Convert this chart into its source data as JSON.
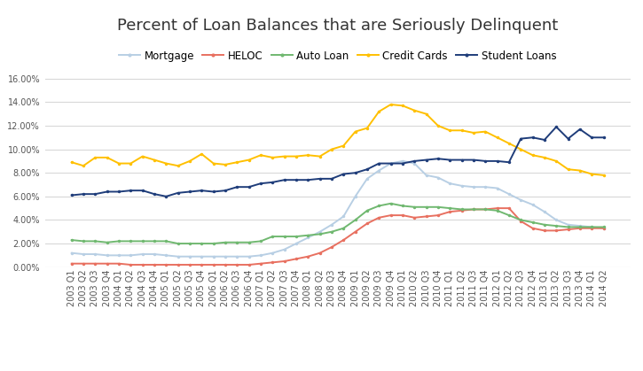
{
  "title": "Percent of Loan Balances that are Seriously Delinquent",
  "labels": [
    "2003 Q1",
    "2003 Q2",
    "2003 Q3",
    "2003 Q4",
    "2004 Q1",
    "2004 Q2",
    "2004 Q3",
    "2004 Q4",
    "2005 Q1",
    "2005 Q2",
    "2005 Q3",
    "2005 Q4",
    "2006 Q1",
    "2006 Q2",
    "2006 Q3",
    "2006 Q4",
    "2007 Q1",
    "2007 Q2",
    "2007 Q3",
    "2007 Q4",
    "2008 Q1",
    "2008 Q2",
    "2008 Q3",
    "2008 Q4",
    "2009 Q1",
    "2009 Q2",
    "2009 Q3",
    "2009 Q4",
    "2010 Q1",
    "2010 Q2",
    "2010 Q3",
    "2010 Q4",
    "2011 Q1",
    "2011 Q2",
    "2011 Q3",
    "2011 Q4",
    "2012 Q1",
    "2012 Q2",
    "2012 Q3",
    "2012 Q4",
    "2013 Q1",
    "2013 Q2",
    "2013 Q3",
    "2013 Q4",
    "2014 Q1",
    "2014 Q2"
  ],
  "mortgage": [
    0.012,
    0.011,
    0.011,
    0.01,
    0.01,
    0.01,
    0.011,
    0.011,
    0.01,
    0.009,
    0.009,
    0.009,
    0.009,
    0.009,
    0.009,
    0.009,
    0.01,
    0.012,
    0.015,
    0.02,
    0.025,
    0.03,
    0.036,
    0.043,
    0.06,
    0.075,
    0.082,
    0.088,
    0.09,
    0.088,
    0.078,
    0.076,
    0.071,
    0.069,
    0.068,
    0.068,
    0.067,
    0.062,
    0.057,
    0.053,
    0.047,
    0.04,
    0.036,
    0.035,
    0.034,
    0.033
  ],
  "heloc": [
    0.003,
    0.003,
    0.003,
    0.003,
    0.003,
    0.002,
    0.002,
    0.002,
    0.002,
    0.002,
    0.002,
    0.002,
    0.002,
    0.002,
    0.002,
    0.002,
    0.003,
    0.004,
    0.005,
    0.007,
    0.009,
    0.012,
    0.017,
    0.023,
    0.03,
    0.037,
    0.042,
    0.044,
    0.044,
    0.042,
    0.043,
    0.044,
    0.047,
    0.048,
    0.049,
    0.049,
    0.05,
    0.05,
    0.039,
    0.033,
    0.031,
    0.031,
    0.032,
    0.033,
    0.033,
    0.033
  ],
  "auto_loan": [
    0.023,
    0.022,
    0.022,
    0.021,
    0.022,
    0.022,
    0.022,
    0.022,
    0.022,
    0.02,
    0.02,
    0.02,
    0.02,
    0.021,
    0.021,
    0.021,
    0.022,
    0.026,
    0.026,
    0.026,
    0.027,
    0.028,
    0.03,
    0.033,
    0.04,
    0.048,
    0.052,
    0.054,
    0.052,
    0.051,
    0.051,
    0.051,
    0.05,
    0.049,
    0.049,
    0.049,
    0.048,
    0.044,
    0.04,
    0.038,
    0.036,
    0.035,
    0.034,
    0.034,
    0.034,
    0.034
  ],
  "credit_cards": [
    0.089,
    0.086,
    0.093,
    0.093,
    0.088,
    0.088,
    0.094,
    0.091,
    0.088,
    0.086,
    0.09,
    0.096,
    0.088,
    0.087,
    0.089,
    0.091,
    0.095,
    0.093,
    0.094,
    0.094,
    0.095,
    0.094,
    0.1,
    0.103,
    0.115,
    0.118,
    0.132,
    0.138,
    0.137,
    0.133,
    0.13,
    0.12,
    0.116,
    0.116,
    0.114,
    0.115,
    0.11,
    0.105,
    0.1,
    0.095,
    0.093,
    0.09,
    0.083,
    0.082,
    0.079,
    0.078
  ],
  "student_loans": [
    0.061,
    0.062,
    0.062,
    0.064,
    0.064,
    0.065,
    0.065,
    0.062,
    0.06,
    0.063,
    0.064,
    0.065,
    0.064,
    0.065,
    0.068,
    0.068,
    0.071,
    0.072,
    0.074,
    0.074,
    0.074,
    0.075,
    0.075,
    0.079,
    0.08,
    0.083,
    0.088,
    0.088,
    0.088,
    0.09,
    0.091,
    0.092,
    0.091,
    0.091,
    0.091,
    0.09,
    0.09,
    0.089,
    0.109,
    0.11,
    0.108,
    0.119,
    0.109,
    0.117,
    0.11,
    0.11
  ],
  "mortgage_color": "#b8cfe4",
  "heloc_color": "#e87060",
  "auto_loan_color": "#70b870",
  "credit_cards_color": "#ffc000",
  "student_loans_color": "#1f3d7a",
  "ylim": [
    0.0,
    0.17
  ],
  "yticks": [
    0.0,
    0.02,
    0.04,
    0.06,
    0.08,
    0.1,
    0.12,
    0.14,
    0.16
  ],
  "background_color": "#ffffff",
  "plot_bg_color": "#ffffff",
  "grid_color": "#d8d8d8",
  "title_fontsize": 13,
  "tick_fontsize": 7,
  "legend_fontsize": 8.5
}
